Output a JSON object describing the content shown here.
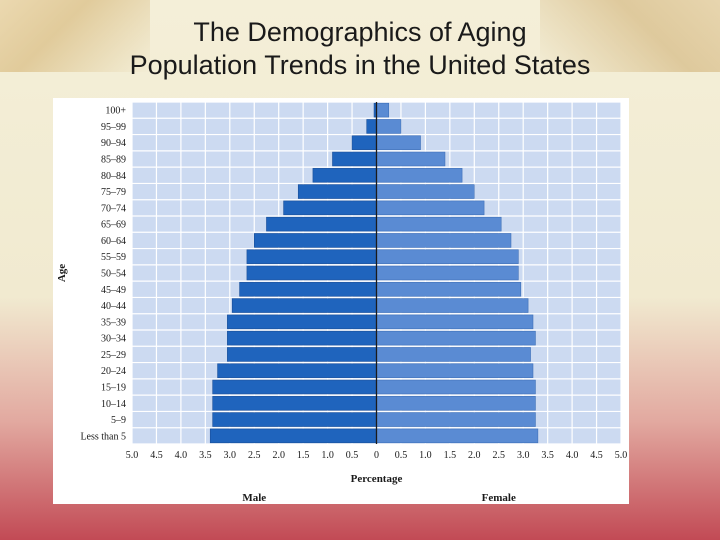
{
  "slide": {
    "title_line1": "The Demographics of Aging",
    "title_line2": "Population Trends in the United States"
  },
  "colors": {
    "male": "#1f64bd",
    "female": "#5a8bd3",
    "plot_bg": "#ccdaf1",
    "grid": "#ffffff"
  },
  "chart_data": {
    "type": "bar",
    "orientation": "horizontal",
    "title": "",
    "xlabel": "Percentage",
    "ylabel": "Age",
    "xlim": [
      -5.0,
      5.0
    ],
    "grid": true,
    "x_ticks": [
      "5.0",
      "4.5",
      "4.0",
      "3.5",
      "3.0",
      "2.5",
      "2.0",
      "1.5",
      "1.0",
      "0.5",
      "0",
      "0.5",
      "1.0",
      "1.5",
      "2.0",
      "2.5",
      "3.0",
      "3.5",
      "4.0",
      "4.5",
      "5.0"
    ],
    "categories": [
      "100+",
      "95–99",
      "90–94",
      "85–89",
      "80–84",
      "75–79",
      "70–74",
      "65–69",
      "60–64",
      "55–59",
      "50–54",
      "45–49",
      "40–44",
      "35–39",
      "30–34",
      "25–29",
      "20–24",
      "15–19",
      "10–14",
      "5–9",
      "Less than 5"
    ],
    "series": [
      {
        "name": "Male",
        "values": [
          0.05,
          0.2,
          0.5,
          0.9,
          1.3,
          1.6,
          1.9,
          2.25,
          2.5,
          2.65,
          2.65,
          2.8,
          2.95,
          3.05,
          3.05,
          3.05,
          3.25,
          3.35,
          3.35,
          3.35,
          3.4
        ]
      },
      {
        "name": "Female",
        "values": [
          0.25,
          0.5,
          0.9,
          1.4,
          1.75,
          2.0,
          2.2,
          2.55,
          2.75,
          2.9,
          2.9,
          2.95,
          3.1,
          3.2,
          3.25,
          3.15,
          3.2,
          3.25,
          3.25,
          3.25,
          3.3
        ]
      }
    ]
  }
}
